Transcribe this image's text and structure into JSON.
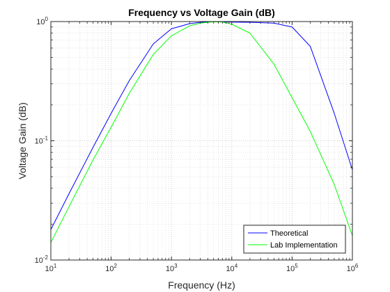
{
  "chart_data": {
    "type": "line",
    "title": "Frequency vs Voltage Gain (dB)",
    "xlabel": "Frequency (Hz)",
    "ylabel": "Voltage Gain (dB)",
    "xscale": "log",
    "yscale": "log",
    "xlim": [
      10,
      1000000
    ],
    "ylim": [
      0.01,
      1
    ],
    "grid": true,
    "minor_grid": true,
    "legend_location": "bottom-right",
    "x_ticks": [
      {
        "base": "10",
        "exp": "1"
      },
      {
        "base": "10",
        "exp": "2"
      },
      {
        "base": "10",
        "exp": "3"
      },
      {
        "base": "10",
        "exp": "4"
      },
      {
        "base": "10",
        "exp": "5"
      },
      {
        "base": "10",
        "exp": "6"
      }
    ],
    "y_ticks": [
      {
        "base": "10",
        "exp": "-2"
      },
      {
        "base": "10",
        "exp": "-1"
      },
      {
        "base": "10",
        "exp": "0"
      }
    ],
    "x": [
      10,
      20,
      50,
      100,
      200,
      500,
      1000,
      2000,
      3000,
      5000,
      7000,
      10000,
      20000,
      50000,
      100000,
      200000,
      500000,
      1000000
    ],
    "series": [
      {
        "name": "Theoretical",
        "color": "#0000ff",
        "values": [
          0.018,
          0.036,
          0.088,
          0.17,
          0.32,
          0.65,
          0.87,
          0.96,
          0.985,
          0.995,
          0.993,
          0.99,
          0.985,
          0.97,
          0.9,
          0.62,
          0.17,
          0.057
        ]
      },
      {
        "name": "Lab Implementation",
        "color": "#00ff00",
        "values": [
          0.014,
          0.028,
          0.069,
          0.13,
          0.25,
          0.53,
          0.76,
          0.92,
          0.97,
          0.995,
          0.99,
          0.95,
          0.8,
          0.44,
          0.23,
          0.12,
          0.043,
          0.016
        ]
      }
    ]
  }
}
